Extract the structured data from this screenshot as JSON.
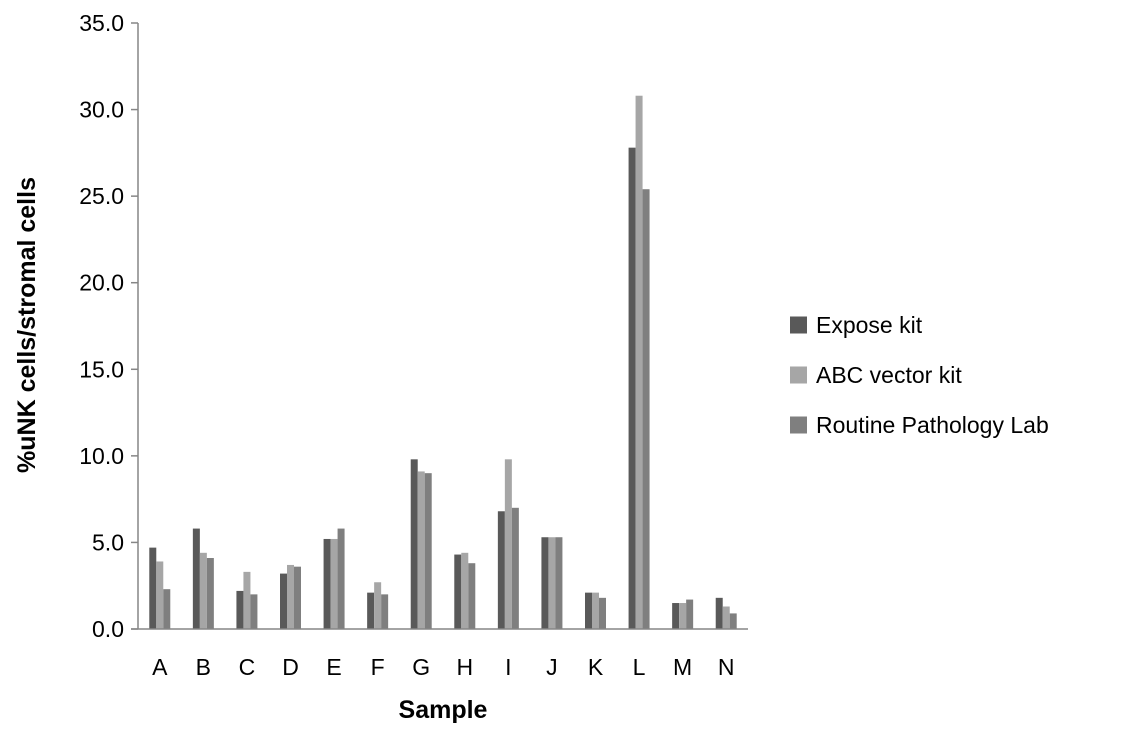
{
  "chart_data": {
    "type": "bar",
    "title": "",
    "xlabel": "Sample",
    "ylabel": "%uNK cells/stromal cells",
    "ylim": [
      0,
      35
    ],
    "yticks": [
      "0.0",
      "5.0",
      "10.0",
      "15.0",
      "20.0",
      "25.0",
      "30.0",
      "35.0"
    ],
    "grid": false,
    "legend_position": "right",
    "categories": [
      "A",
      "B",
      "C",
      "D",
      "E",
      "F",
      "G",
      "H",
      "I",
      "J",
      "K",
      "L",
      "M",
      "N"
    ],
    "series": [
      {
        "name": "Expose kit",
        "color": "#595959",
        "values": [
          4.7,
          5.8,
          2.2,
          3.2,
          5.2,
          2.1,
          9.8,
          4.3,
          6.8,
          5.3,
          2.1,
          27.8,
          1.5,
          1.8
        ]
      },
      {
        "name": "ABC vector kit",
        "color": "#a6a6a6",
        "values": [
          3.9,
          4.4,
          3.3,
          3.7,
          5.2,
          2.7,
          9.1,
          4.4,
          9.8,
          5.3,
          2.1,
          30.8,
          1.5,
          1.3
        ]
      },
      {
        "name": "Routine Pathology Lab",
        "color": "#7f7f7f",
        "values": [
          2.3,
          4.1,
          2.0,
          3.6,
          5.8,
          2.0,
          9.0,
          3.8,
          7.0,
          5.3,
          1.8,
          25.4,
          1.7,
          0.9
        ]
      }
    ]
  }
}
